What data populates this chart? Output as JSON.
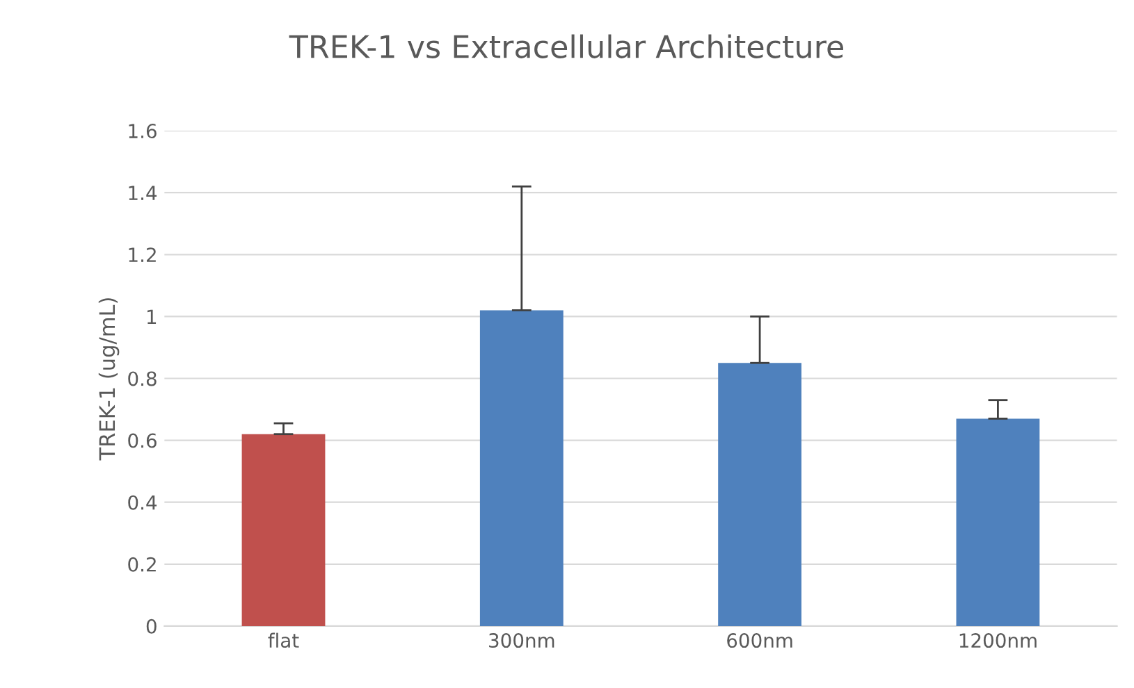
{
  "chart_data": {
    "type": "bar",
    "title": "TREK-1 vs Extracellular Architecture",
    "ylabel": "TREK-1 (ug/mL)",
    "categories": [
      "flat",
      "300nm",
      "600nm",
      "1200nm"
    ],
    "values": [
      0.62,
      1.02,
      0.85,
      0.67
    ],
    "colors": [
      "#c0504d",
      "#4f81bd",
      "#4f81bd",
      "#4f81bd"
    ],
    "errors": [
      [
        0.62,
        0.655
      ],
      [
        1.02,
        1.42
      ],
      [
        0.85,
        1.0
      ],
      [
        0.67,
        0.73
      ]
    ],
    "ylim": [
      0,
      1.6
    ],
    "yticks": [
      0,
      0.2,
      0.4,
      0.6,
      0.8,
      1,
      1.2,
      1.4,
      1.6
    ],
    "grid": "y",
    "legend": false
  }
}
